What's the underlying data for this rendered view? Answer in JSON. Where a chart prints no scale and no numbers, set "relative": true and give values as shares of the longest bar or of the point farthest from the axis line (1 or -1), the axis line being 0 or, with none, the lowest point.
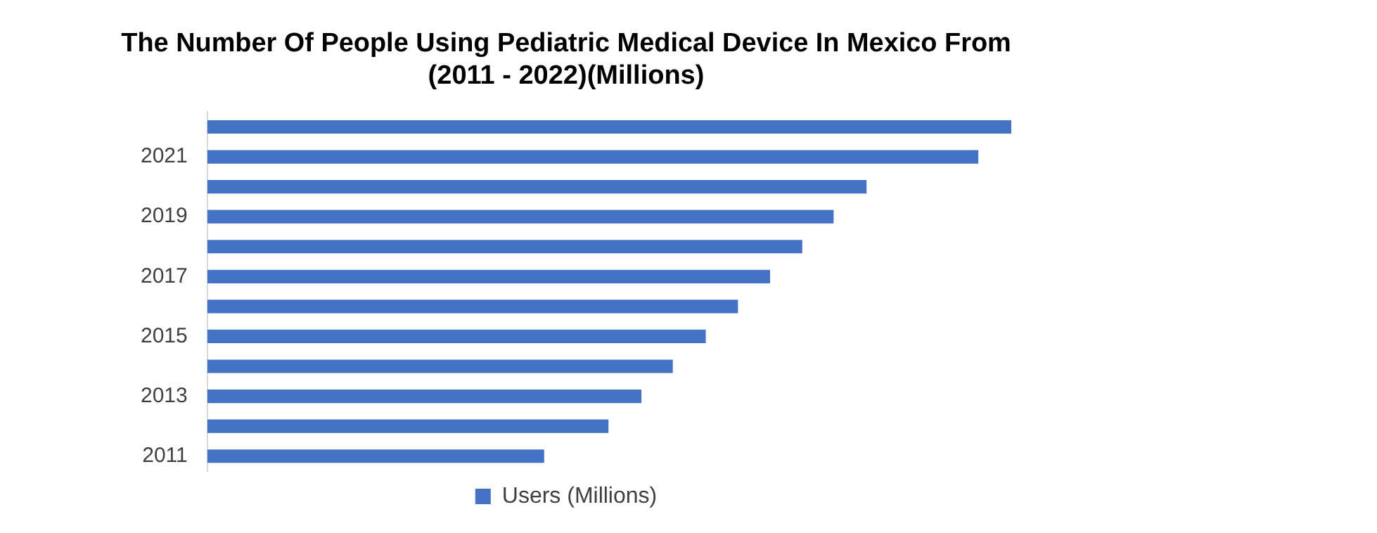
{
  "chart_data": {
    "type": "bar",
    "orientation": "horizontal",
    "relative": true,
    "title": "The Number Of People Using Pediatric Medical Device In Mexico From\n(2011 - 2022)(Millions)",
    "categories": [
      null,
      "2021",
      null,
      "2019",
      null,
      "2017",
      null,
      "2015",
      null,
      "2013",
      null,
      "2011"
    ],
    "series": [
      {
        "name": "Users (Millions)",
        "color": "#4472c4",
        "values": [
          1,
          0.959,
          0.82,
          0.779,
          0.74,
          0.7,
          0.66,
          0.62,
          0.579,
          0.54,
          0.499,
          0.419
        ]
      }
    ],
    "legend": "bottom",
    "grid": false
  }
}
